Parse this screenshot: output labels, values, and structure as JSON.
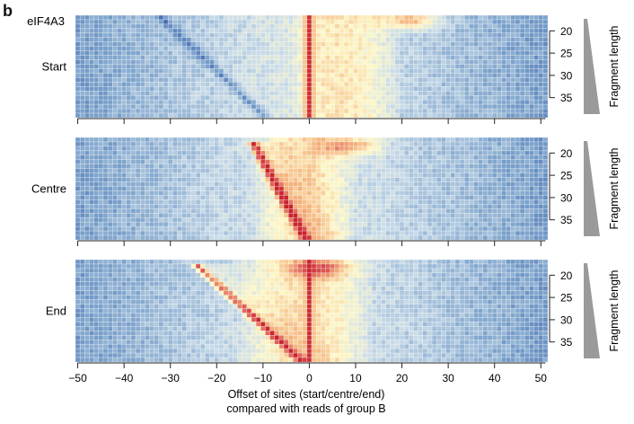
{
  "panel_letter": "b",
  "chart_data": {
    "type": "heatmap",
    "xlabel_line1": "Offset of sites (start/centre/end)",
    "xlabel_line2": "compared with reads of group B",
    "ylabel": "Fragment length",
    "x_range": [
      -50,
      51
    ],
    "y_range": [
      17,
      39
    ],
    "x_ticks": [
      "−50",
      "−40",
      "−30",
      "−20",
      "−10",
      "0",
      "10",
      "20",
      "30",
      "40",
      "50"
    ],
    "y_ticks": [
      "20",
      "25",
      "30",
      "35"
    ],
    "y_tick_values": [
      20,
      25,
      30,
      35
    ],
    "colorscale": [
      "#3a5fa8",
      "#7aa1cb",
      "#c9dbe8",
      "#fdf7c6",
      "#f4b27c",
      "#e0625a",
      "#c8242e"
    ],
    "panels": [
      {
        "label": "Start",
        "extra_label": "eIF4A3",
        "features": {
          "diagonal": {
            "x_at_len20": -29,
            "x_at_len39": -10,
            "strength": 0.35,
            "color": "blue"
          },
          "vertical_line_x": 0,
          "warm_region": [
            -4,
            20
          ],
          "hotspot": {
            "x": 22,
            "len": 17.5
          }
        }
      },
      {
        "label": "Centre",
        "extra_label": "",
        "features": {
          "diagonal": {
            "x_at_len20": -11,
            "x_at_len39": -1,
            "strength": 1.0,
            "color": "red"
          },
          "vertical_line_x": null,
          "warm_region": [
            -12,
            10
          ],
          "hotspot": {
            "x": 9,
            "len": 18.5
          }
        }
      },
      {
        "label": "End",
        "extra_label": "",
        "features": {
          "diagonal": {
            "x_at_len20": -22,
            "x_at_len39": -2,
            "strength": 0.9,
            "color": "red"
          },
          "vertical_line_x": 0,
          "warm_region": [
            -16,
            14
          ],
          "hotspot": {
            "x": 2,
            "len": 18.5
          }
        }
      }
    ]
  }
}
